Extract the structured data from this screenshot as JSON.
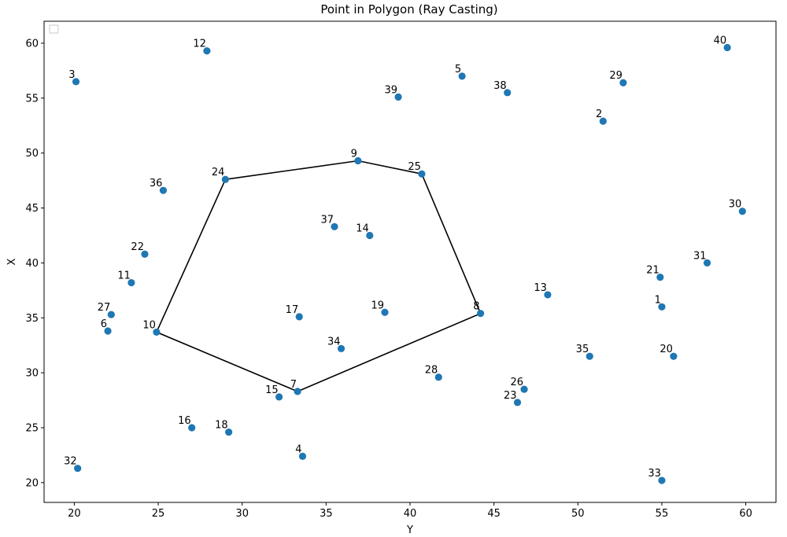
{
  "chart_data": {
    "type": "scatter",
    "title": "Point in Polygon (Ray Casting)",
    "xlabel": "Y",
    "ylabel": "X",
    "xlim": [
      18.2,
      61.8
    ],
    "ylim": [
      18.2,
      62
    ],
    "xticks": [
      20,
      25,
      30,
      35,
      40,
      45,
      50,
      55,
      60
    ],
    "yticks": [
      20,
      25,
      30,
      35,
      40,
      45,
      50,
      55,
      60
    ],
    "legend": "top-left (empty)",
    "colors": {
      "points": "#1f77b4",
      "polygon": "#000000"
    },
    "polygon": [
      24,
      9,
      25,
      8,
      7,
      10
    ],
    "points": [
      {
        "id": "1",
        "x": 55.0,
        "y": 36.0
      },
      {
        "id": "2",
        "x": 51.5,
        "y": 52.9
      },
      {
        "id": "3",
        "x": 20.1,
        "y": 56.5
      },
      {
        "id": "4",
        "x": 33.6,
        "y": 22.4
      },
      {
        "id": "5",
        "x": 43.1,
        "y": 57.0
      },
      {
        "id": "6",
        "x": 22.0,
        "y": 33.8
      },
      {
        "id": "7",
        "x": 33.3,
        "y": 28.3
      },
      {
        "id": "8",
        "x": 44.2,
        "y": 35.4
      },
      {
        "id": "9",
        "x": 36.9,
        "y": 49.3
      },
      {
        "id": "10",
        "x": 24.9,
        "y": 33.7
      },
      {
        "id": "11",
        "x": 23.4,
        "y": 38.2
      },
      {
        "id": "12",
        "x": 27.9,
        "y": 59.3
      },
      {
        "id": "13",
        "x": 48.2,
        "y": 37.1
      },
      {
        "id": "14",
        "x": 37.6,
        "y": 42.5
      },
      {
        "id": "15",
        "x": 32.2,
        "y": 27.8
      },
      {
        "id": "16",
        "x": 27.0,
        "y": 25.0
      },
      {
        "id": "17",
        "x": 33.4,
        "y": 35.1
      },
      {
        "id": "18",
        "x": 29.2,
        "y": 24.6
      },
      {
        "id": "19",
        "x": 38.5,
        "y": 35.5
      },
      {
        "id": "20",
        "x": 55.7,
        "y": 31.5
      },
      {
        "id": "21",
        "x": 54.9,
        "y": 38.7
      },
      {
        "id": "22",
        "x": 24.2,
        "y": 40.8
      },
      {
        "id": "23",
        "x": 46.4,
        "y": 27.3
      },
      {
        "id": "24",
        "x": 29.0,
        "y": 47.6
      },
      {
        "id": "25",
        "x": 40.7,
        "y": 48.1
      },
      {
        "id": "26",
        "x": 46.8,
        "y": 28.5
      },
      {
        "id": "27",
        "x": 22.2,
        "y": 35.3
      },
      {
        "id": "28",
        "x": 41.7,
        "y": 29.6
      },
      {
        "id": "29",
        "x": 52.7,
        "y": 56.4
      },
      {
        "id": "30",
        "x": 59.8,
        "y": 44.7
      },
      {
        "id": "31",
        "x": 57.7,
        "y": 40.0
      },
      {
        "id": "32",
        "x": 20.2,
        "y": 21.3
      },
      {
        "id": "33",
        "x": 55.0,
        "y": 20.2
      },
      {
        "id": "34",
        "x": 35.9,
        "y": 32.2
      },
      {
        "id": "35",
        "x": 50.7,
        "y": 31.5
      },
      {
        "id": "36",
        "x": 25.3,
        "y": 46.6
      },
      {
        "id": "37",
        "x": 35.5,
        "y": 43.3
      },
      {
        "id": "38",
        "x": 45.8,
        "y": 55.5
      },
      {
        "id": "39",
        "x": 39.3,
        "y": 55.1
      },
      {
        "id": "40",
        "x": 58.9,
        "y": 59.6
      }
    ]
  }
}
